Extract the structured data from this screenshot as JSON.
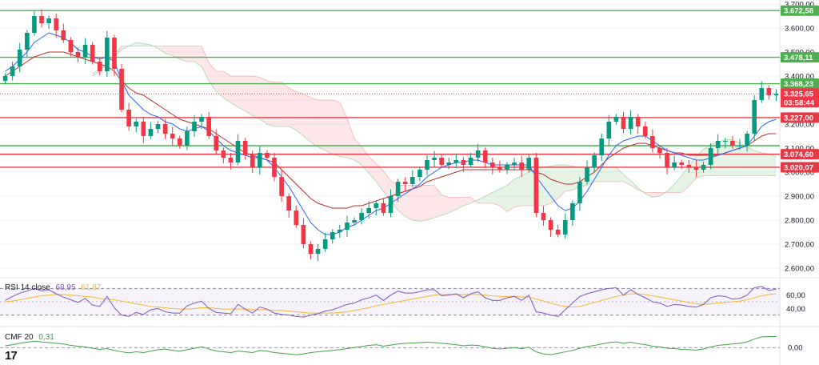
{
  "chart_data": {
    "type": "candlestick",
    "main": {
      "price_axis": [
        "3.700,00",
        "3.600,00",
        "3.500,00",
        "3.400,00",
        "3.300,00",
        "3.200,00",
        "3.100,00",
        "3.000,00",
        "2.900,00",
        "2.800,00",
        "2.700,00",
        "2.600,00"
      ],
      "ylim": [
        2580,
        3700
      ],
      "levels": [
        {
          "value": 3672.58,
          "label": "3.672,58",
          "color": "#4caf50"
        },
        {
          "value": 3478.11,
          "label": "3.478,11",
          "color": "#4caf50"
        },
        {
          "value": 3368.23,
          "label": "3.368,23",
          "color": "#4caf50"
        },
        {
          "value": 3227.0,
          "label": "3.227,00",
          "color": "#e53945"
        },
        {
          "value": 3110.0,
          "label": "",
          "color": "#4caf50"
        },
        {
          "value": 3074.6,
          "label": "3.074,60",
          "color": "#e53945"
        },
        {
          "value": 3020.07,
          "label": "3.020,07",
          "color": "#e53945"
        }
      ],
      "current_price": {
        "value": 3325.65,
        "label": "3.325,65",
        "countdown": "03:58:44",
        "color": "#f23645"
      },
      "close_series": [
        3400,
        3440,
        3510,
        3580,
        3650,
        3620,
        3640,
        3590,
        3550,
        3500,
        3480,
        3530,
        3460,
        3420,
        3560,
        3430,
        3260,
        3190,
        3210,
        3150,
        3180,
        3200,
        3160,
        3140,
        3110,
        3170,
        3210,
        3230,
        3150,
        3090,
        3060,
        3040,
        3130,
        3070,
        3020,
        3080,
        3060,
        2980,
        2900,
        2840,
        2780,
        2700,
        2660,
        2680,
        2720,
        2750,
        2760,
        2790,
        2800,
        2830,
        2850,
        2870,
        2830,
        2900,
        2960,
        2950,
        2980,
        3010,
        3050,
        3060,
        3030,
        3040,
        3050,
        3030,
        3060,
        3090,
        3040,
        3020,
        3010,
        3030,
        3040,
        3010,
        3060,
        2830,
        2800,
        2760,
        2740,
        2800,
        2870,
        2960,
        3020,
        3070,
        3140,
        3210,
        3230,
        3180,
        3230,
        3190,
        3150,
        3100,
        3080,
        3020,
        3040,
        3030,
        3020,
        3010,
        3030,
        3100,
        3130,
        3130,
        3110,
        3110,
        3160,
        3300,
        3350,
        3320,
        3325.65
      ],
      "conversion_line": [
        3420,
        3440,
        3470,
        3500,
        3540,
        3560,
        3580,
        3570,
        3560,
        3540,
        3510,
        3500,
        3480,
        3470,
        3480,
        3460,
        3380,
        3320,
        3290,
        3260,
        3240,
        3230,
        3210,
        3200,
        3180,
        3170,
        3180,
        3190,
        3170,
        3140,
        3110,
        3090,
        3080,
        3070,
        3060,
        3060,
        3050,
        3020,
        2980,
        2940,
        2890,
        2840,
        2790,
        2760,
        2740,
        2740,
        2750,
        2770,
        2780,
        2800,
        2820,
        2840,
        2850,
        2870,
        2890,
        2910,
        2930,
        2950,
        2980,
        3000,
        3020,
        3030,
        3040,
        3040,
        3050,
        3050,
        3040,
        3030,
        3030,
        3030,
        3030,
        3030,
        3030,
        2980,
        2940,
        2900,
        2860,
        2840,
        2850,
        2880,
        2920,
        2970,
        3020,
        3070,
        3110,
        3130,
        3140,
        3150,
        3150,
        3130,
        3110,
        3090,
        3080,
        3070,
        3060,
        3050,
        3050,
        3060,
        3070,
        3080,
        3090,
        3100,
        3110,
        3150,
        3190,
        3210,
        3220
      ],
      "base_line": [
        3400,
        3420,
        3440,
        3460,
        3480,
        3490,
        3500,
        3500,
        3500,
        3490,
        3480,
        3470,
        3460,
        3450,
        3440,
        3420,
        3380,
        3350,
        3330,
        3320,
        3300,
        3280,
        3260,
        3240,
        3220,
        3210,
        3200,
        3190,
        3180,
        3160,
        3140,
        3120,
        3100,
        3080,
        3070,
        3060,
        3050,
        3040,
        3010,
        2980,
        2950,
        2920,
        2890,
        2870,
        2860,
        2850,
        2850,
        2850,
        2860,
        2860,
        2870,
        2880,
        2890,
        2900,
        2910,
        2920,
        2930,
        2940,
        2960,
        2970,
        2980,
        2990,
        3000,
        3010,
        3010,
        3010,
        3010,
        3010,
        3010,
        3010,
        3010,
        3010,
        3010,
        3000,
        2990,
        2970,
        2960,
        2950,
        2950,
        2960,
        2980,
        3000,
        3030,
        3060,
        3080,
        3100,
        3110,
        3120,
        3120,
        3110,
        3100,
        3090,
        3080,
        3080,
        3070,
        3070,
        3070,
        3070,
        3070,
        3080,
        3090,
        3100,
        3110,
        3130,
        3150,
        3160,
        3160
      ]
    },
    "rsi": {
      "label": "RSI 14 close",
      "value": "68,95",
      "ma_value": "61,87",
      "axis": [
        "60,00",
        "40,00"
      ],
      "ylim": [
        20,
        80
      ],
      "upper_band": 70,
      "lower_band": 30,
      "mid": 50,
      "rsi_series": [
        52,
        58,
        63,
        66,
        70,
        66,
        68,
        62,
        57,
        53,
        49,
        55,
        45,
        43,
        58,
        41,
        30,
        28,
        34,
        31,
        38,
        40,
        35,
        33,
        33,
        44,
        48,
        51,
        40,
        34,
        33,
        32,
        46,
        39,
        33,
        42,
        39,
        33,
        31,
        30,
        28,
        27,
        30,
        32,
        36,
        38,
        42,
        46,
        48,
        53,
        56,
        60,
        52,
        60,
        66,
        63,
        63,
        65,
        68,
        68,
        59,
        60,
        62,
        56,
        62,
        65,
        56,
        52,
        52,
        56,
        58,
        52,
        60,
        35,
        33,
        30,
        28,
        38,
        48,
        58,
        62,
        65,
        68,
        70,
        71,
        60,
        68,
        61,
        56,
        50,
        48,
        43,
        46,
        45,
        43,
        42,
        46,
        56,
        59,
        58,
        54,
        55,
        60,
        71,
        73,
        67,
        69
      ],
      "ma_series": [
        50,
        51,
        53,
        55,
        57,
        59,
        60,
        61,
        61,
        60,
        59,
        58,
        57,
        55,
        54,
        53,
        51,
        49,
        47,
        45,
        43,
        42,
        41,
        40,
        39,
        39,
        40,
        41,
        41,
        40,
        39,
        39,
        39,
        39,
        38,
        38,
        38,
        37,
        37,
        36,
        35,
        34,
        33,
        33,
        33,
        33,
        34,
        35,
        37,
        39,
        41,
        44,
        46,
        48,
        50,
        52,
        54,
        56,
        58,
        60,
        61,
        61,
        61,
        61,
        61,
        61,
        60,
        59,
        58,
        58,
        58,
        57,
        57,
        54,
        51,
        48,
        45,
        43,
        42,
        43,
        46,
        49,
        52,
        55,
        58,
        60,
        62,
        62,
        61,
        59,
        57,
        55,
        53,
        51,
        49,
        47,
        46,
        47,
        48,
        49,
        50,
        51,
        53,
        56,
        59,
        61,
        62
      ]
    },
    "cmf": {
      "label": "CMF 20",
      "value": "0,31",
      "axis": [
        "0,00"
      ],
      "ylim": [
        -0.4,
        0.5
      ],
      "series": [
        0.05,
        0.08,
        0.12,
        0.15,
        0.18,
        0.16,
        0.14,
        0.12,
        0.1,
        0.06,
        0.04,
        0.02,
        -0.02,
        -0.05,
        -0.03,
        -0.08,
        -0.12,
        -0.15,
        -0.12,
        -0.14,
        -0.1,
        -0.06,
        -0.04,
        -0.08,
        -0.1,
        -0.06,
        -0.02,
        0.02,
        -0.04,
        -0.1,
        -0.12,
        -0.14,
        -0.1,
        -0.12,
        -0.14,
        -0.08,
        -0.1,
        -0.14,
        -0.16,
        -0.18,
        -0.2,
        -0.18,
        -0.14,
        -0.12,
        -0.1,
        -0.08,
        -0.06,
        -0.03,
        0.0,
        0.03,
        0.06,
        0.08,
        0.04,
        0.07,
        0.1,
        0.12,
        0.13,
        0.14,
        0.15,
        0.14,
        0.12,
        0.1,
        0.08,
        0.05,
        0.07,
        0.06,
        0.02,
        -0.02,
        -0.04,
        -0.02,
        0.0,
        -0.03,
        0.01,
        -0.12,
        -0.18,
        -0.2,
        -0.16,
        -0.12,
        -0.08,
        -0.02,
        0.03,
        0.06,
        0.1,
        0.14,
        0.16,
        0.12,
        0.15,
        0.11,
        0.08,
        0.04,
        0.02,
        -0.02,
        -0.03,
        -0.05,
        -0.06,
        -0.07,
        -0.04,
        0.02,
        0.06,
        0.08,
        0.1,
        0.12,
        0.16,
        0.24,
        0.3,
        0.31,
        0.31
      ]
    }
  },
  "brand": {
    "logo": "17"
  }
}
